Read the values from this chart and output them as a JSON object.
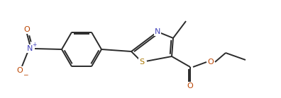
{
  "bg_color": "#ffffff",
  "line_color": "#2a2a2a",
  "atom_colors": {
    "N": "#4444bb",
    "O": "#bb4400",
    "S": "#aa7700"
  },
  "line_width": 1.4,
  "font_size_atom": 7.5,
  "figsize": [
    3.96,
    1.39
  ],
  "dpi": 100
}
